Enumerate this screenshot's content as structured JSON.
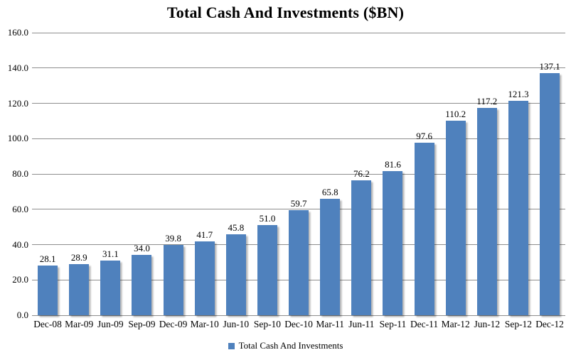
{
  "chart_data": {
    "type": "bar",
    "title": "Total Cash And Investments ($BN)",
    "categories": [
      "Dec-08",
      "Mar-09",
      "Jun-09",
      "Sep-09",
      "Dec-09",
      "Mar-10",
      "Jun-10",
      "Sep-10",
      "Dec-10",
      "Mar-11",
      "Jun-11",
      "Sep-11",
      "Dec-11",
      "Mar-12",
      "Jun-12",
      "Sep-12",
      "Dec-12"
    ],
    "values": [
      28.1,
      28.9,
      31.1,
      34.0,
      39.8,
      41.7,
      45.8,
      51.0,
      59.7,
      65.8,
      76.2,
      81.6,
      97.6,
      110.2,
      117.2,
      121.3,
      137.1
    ],
    "value_labels": [
      "28.1",
      "28.9",
      "31.1",
      "34.0",
      "39.8",
      "41.7",
      "45.8",
      "51.0",
      "59.7",
      "65.8",
      "76.2",
      "81.6",
      "97.6",
      "110.2",
      "117.2",
      "121.3",
      "137.1"
    ],
    "xlabel": "",
    "ylabel": "",
    "ylim": [
      0,
      160
    ],
    "y_ticks": [
      "160.0",
      "140.0",
      "120.0",
      "100.0",
      "80.0",
      "60.0",
      "40.0",
      "20.0",
      "0.0"
    ],
    "grid": true,
    "legend": {
      "position": "bottom",
      "label": "Total Cash And Investments"
    },
    "colors": {
      "bar": "#4F81BD",
      "gridline": "#8E8E8E",
      "axis": "#8E8E8E",
      "text": "#000000",
      "background": "#FFFFFF"
    }
  }
}
